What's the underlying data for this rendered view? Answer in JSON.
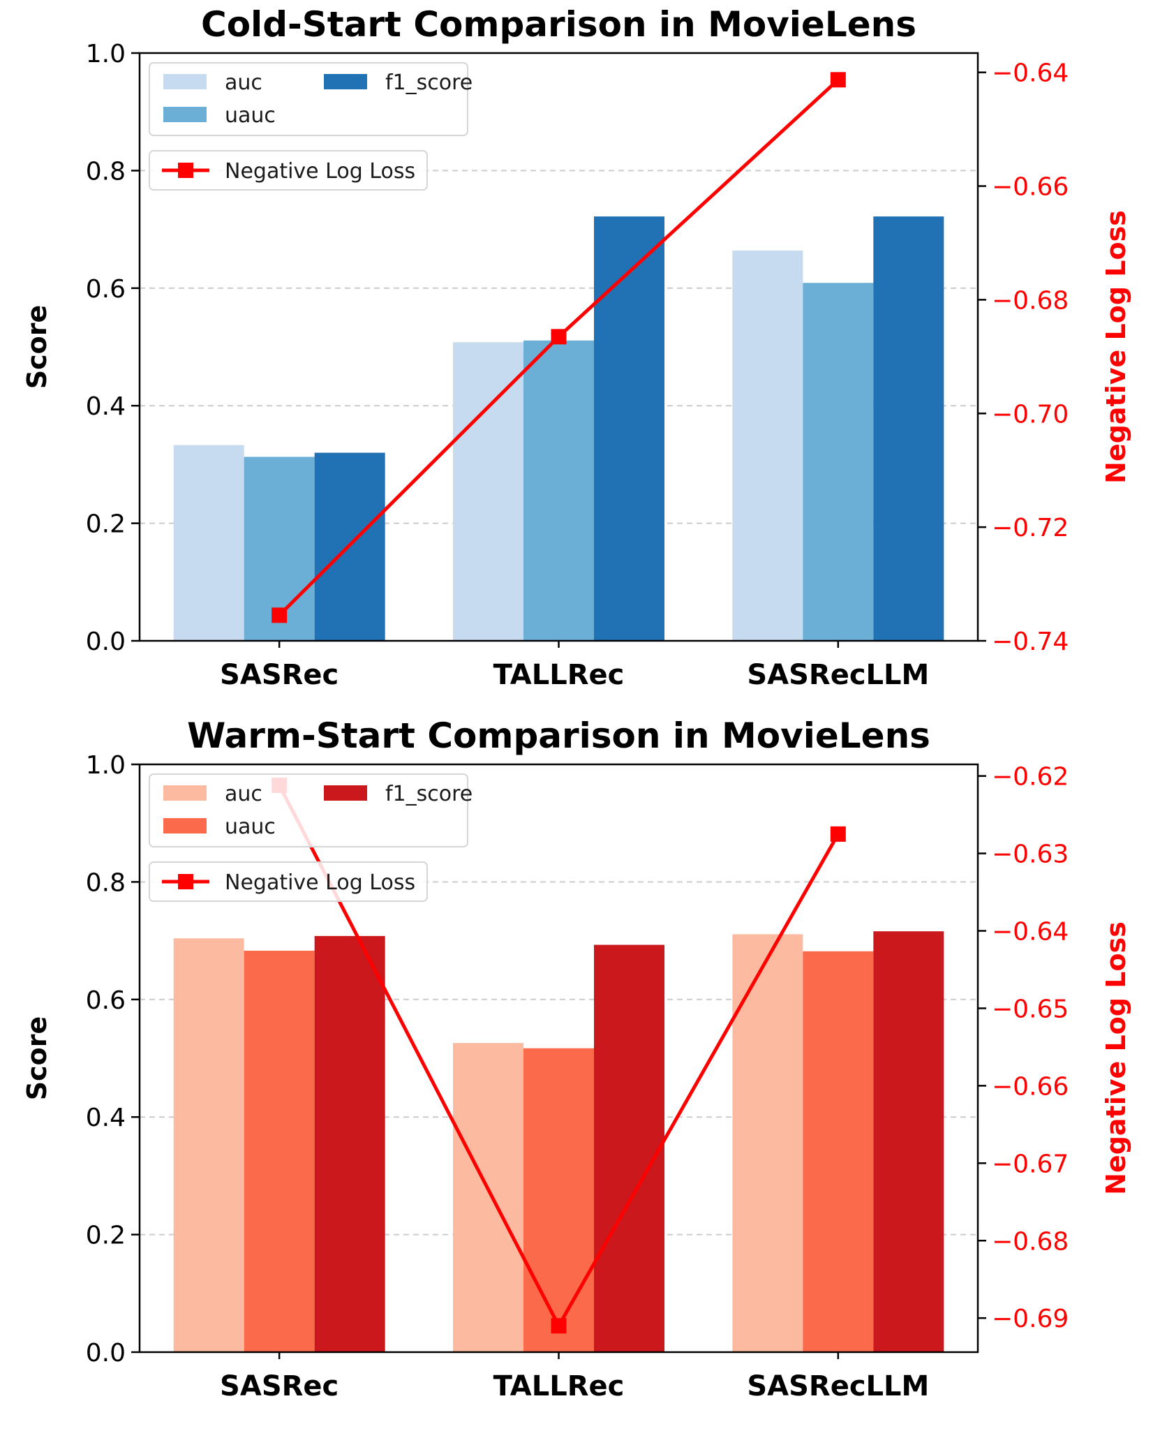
{
  "chart_data": [
    {
      "type": "bar",
      "title": "Cold-Start Comparison in MovieLens",
      "xlabel": "",
      "ylabel": "Score",
      "ylabel_right": "Negative Log Loss",
      "categories": [
        "SASRec",
        "TALLRec",
        "SASRecLLM"
      ],
      "ylim": [
        0,
        1.0
      ],
      "yticks": [
        "0.0",
        "0.2",
        "0.4",
        "0.6",
        "0.8",
        "1.0"
      ],
      "series": [
        {
          "name": "auc",
          "color": "#c6dbef",
          "values": [
            0.333,
            0.508,
            0.664
          ]
        },
        {
          "name": "uauc",
          "color": "#6baed6",
          "values": [
            0.313,
            0.511,
            0.609
          ]
        },
        {
          "name": "f1_score",
          "color": "#2171b5",
          "values": [
            0.32,
            0.722,
            0.722
          ]
        }
      ],
      "line": {
        "name": "Negative Log Loss",
        "color": "#ff0000",
        "values": [
          -0.7355,
          -0.6865,
          -0.6413
        ],
        "ylim": [
          -0.74,
          -0.6366
        ],
        "yticks": [
          "−0.74",
          "−0.72",
          "−0.70",
          "−0.68",
          "−0.66",
          "−0.64"
        ]
      },
      "grid": true,
      "legend": "top-left"
    },
    {
      "type": "bar",
      "title": "Warm-Start Comparison in MovieLens",
      "xlabel": "",
      "ylabel": "Score",
      "ylabel_right": "Negative Log Loss",
      "categories": [
        "SASRec",
        "TALLRec",
        "SASRecLLM"
      ],
      "ylim": [
        0,
        1.0
      ],
      "yticks": [
        "0.0",
        "0.2",
        "0.4",
        "0.6",
        "0.8",
        "1.0"
      ],
      "series": [
        {
          "name": "auc",
          "color": "#fcbba1",
          "values": [
            0.704,
            0.526,
            0.711
          ]
        },
        {
          "name": "uauc",
          "color": "#fb6a4a",
          "values": [
            0.683,
            0.517,
            0.682
          ]
        },
        {
          "name": "f1_score",
          "color": "#cb181d",
          "values": [
            0.708,
            0.693,
            0.716
          ]
        }
      ],
      "line": {
        "name": "Negative Log Loss",
        "color": "#ff0000",
        "values": [
          -0.6212,
          -0.691,
          -0.6275
        ],
        "ylim": [
          -0.6944,
          -0.6185
        ],
        "yticks": [
          "−0.69",
          "−0.68",
          "−0.67",
          "−0.66",
          "−0.65",
          "−0.64",
          "−0.63",
          "−0.62"
        ]
      },
      "grid": true,
      "legend": "top-left"
    }
  ]
}
